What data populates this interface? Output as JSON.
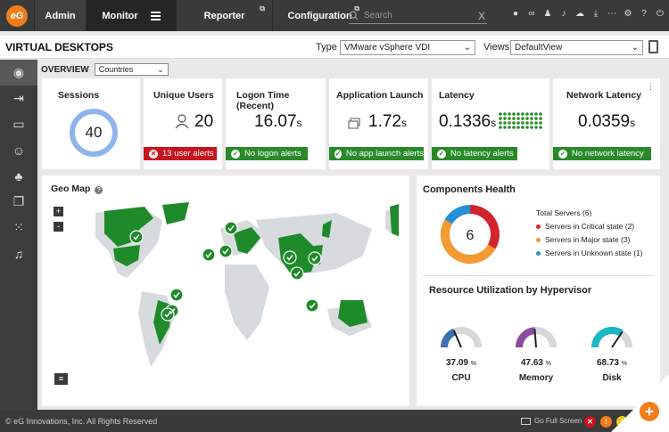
{
  "nav": {
    "logo": "eG",
    "admin": "Admin",
    "monitor": "Monitor",
    "reporter": "Reporter",
    "configuration": "Configuration",
    "search_placeholder": "Search",
    "search_clear": "X"
  },
  "top_icons": [
    "user-icon",
    "link-icon",
    "group-icon",
    "bell-icon",
    "cloud-icon",
    "download-icon",
    "more-icon",
    "gear-icon",
    "help-icon",
    "power-icon"
  ],
  "title": "VIRTUAL DESKTOPS",
  "type_label": "Type",
  "type_value": "VMware vSphere VDI",
  "views_label": "Views",
  "views_value": "DefaultView",
  "overview": {
    "label": "OVERVIEW",
    "filter_value": "Countries"
  },
  "sidebar": [
    "eye-icon",
    "login-icon",
    "desktop-icon",
    "users-icon",
    "hierarchy-icon",
    "windows-icon",
    "grid-icon",
    "bell-icon"
  ],
  "cards": {
    "sessions": {
      "title": "Sessions",
      "value": "40"
    },
    "unique_users": {
      "title": "Unique Users",
      "value": "20",
      "alert": "13 user alerts",
      "alert_icon": "✕"
    },
    "logon_time": {
      "title": "Logon Time (Recent)",
      "value": "16.07",
      "unit": "s",
      "alert": "No logon alerts",
      "alert_icon": "✓"
    },
    "app_launch": {
      "title": "Application Launch",
      "value": "1.72",
      "unit": "s",
      "alert": "No app launch alerts",
      "alert_icon": "✓"
    },
    "latency": {
      "title": "Latency",
      "value": "0.1336",
      "unit": "s",
      "alert": "No latency alerts",
      "alert_icon": "✓"
    },
    "network_latency": {
      "title": "Network Latency",
      "value": "0.0359",
      "unit": "s",
      "alert": "No network latency",
      "alert_icon": "✓"
    }
  },
  "geo": {
    "title": "Geo Map",
    "help": "?",
    "zoom_in": "+",
    "zoom_out": "-"
  },
  "components": {
    "title": "Components Health",
    "total": "6",
    "legend_title": "Total Servers (6)",
    "legend": [
      {
        "label": "Servers in Critical state (2)",
        "color": "#d1252d"
      },
      {
        "label": "Servers in Major state (3)",
        "color": "#f39a32"
      },
      {
        "label": "Servers in Unknown state (1)",
        "color": "#2590d4"
      }
    ]
  },
  "resource": {
    "title": "Resource Utilization by Hypervisor",
    "gauges": [
      {
        "label": "CPU",
        "value": "37.09",
        "unit": "%",
        "fraction": 0.3709,
        "color": "#3f6fb0"
      },
      {
        "label": "Memory",
        "value": "47.63",
        "unit": "%",
        "fraction": 0.4763,
        "color": "#8a4c9e"
      },
      {
        "label": "Disk",
        "value": "68.73",
        "unit": "%",
        "fraction": 0.6873,
        "color": "#1bb8c4"
      }
    ]
  },
  "footer": {
    "copyright": "© eG Innovations, Inc. All Rights Reserved",
    "fullscreen": "Go Full Screen",
    "critical": "✕",
    "major": "!",
    "minor": "!",
    "add": "+"
  }
}
